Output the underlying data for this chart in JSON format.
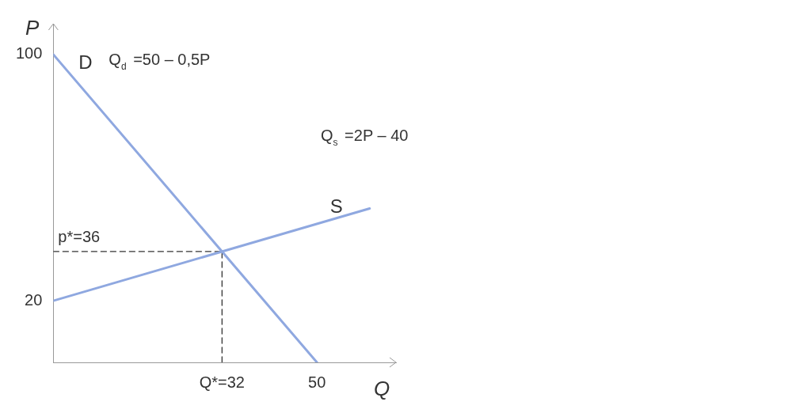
{
  "chart_data": {
    "type": "line",
    "xlabel": "Q",
    "ylabel": "P",
    "xlim": [
      0,
      65
    ],
    "ylim": [
      0,
      110
    ],
    "xticks": [
      {
        "value": 32,
        "label": "Q*=32"
      },
      50
    ],
    "yticks": [
      20,
      100
    ],
    "grid": false,
    "legend": false,
    "marker": "none",
    "series": [
      {
        "name": "D",
        "color": "#8fa8e0",
        "x": [
          0,
          50
        ],
        "values": [
          100,
          0
        ]
      },
      {
        "name": "S",
        "color": "#8fa8e0",
        "x": [
          0,
          60
        ],
        "values": [
          20,
          50
        ]
      },
      {
        "color": "#333333",
        "line_style": "dashed",
        "x": [
          0,
          32
        ],
        "values": [
          36,
          36
        ]
      },
      {
        "color": "#333333",
        "line_style": "dashed",
        "x": [
          32,
          32
        ],
        "values": [
          0,
          36
        ]
      }
    ],
    "annotations": [
      "Q$_{d}$ =50 – 0,5P",
      "Q$_{s}$ =2P – 40",
      {
        "text": "p*=36",
        "x": 0,
        "y": 36
      }
    ]
  }
}
